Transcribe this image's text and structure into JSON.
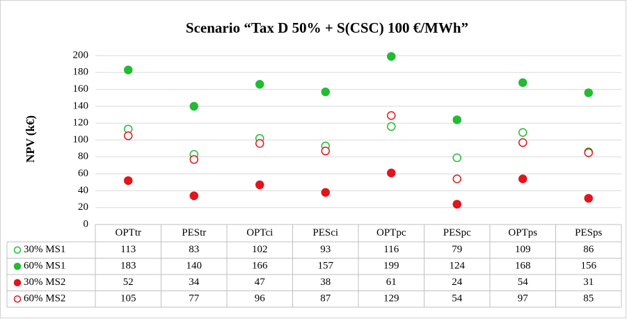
{
  "chart_data": {
    "type": "scatter",
    "title": "Scenario “Tax D 50% + S(CSC) 100 €/MWh”",
    "y_label": "NPV (k€)",
    "categories": [
      "OPTtr",
      "PEStr",
      "OPTci",
      "PESci",
      "OPTpc",
      "PESpc",
      "OPTps",
      "PESps"
    ],
    "series": [
      {
        "name": "30% MS1",
        "color": "#22bb33",
        "marker": "open",
        "values": [
          113,
          83,
          102,
          93,
          116,
          79,
          109,
          86
        ]
      },
      {
        "name": "60% MS1",
        "color": "#22bb33",
        "marker": "filled",
        "values": [
          183,
          140,
          166,
          157,
          199,
          124,
          168,
          156
        ]
      },
      {
        "name": "30% MS2",
        "color": "#e2141c",
        "marker": "filled",
        "values": [
          52,
          34,
          47,
          38,
          61,
          24,
          54,
          31
        ]
      },
      {
        "name": "60% MS2",
        "color": "#e2141c",
        "marker": "open",
        "values": [
          105,
          77,
          96,
          87,
          129,
          54,
          97,
          85
        ]
      }
    ],
    "ylim": [
      0,
      200
    ],
    "yticks": [
      0,
      20,
      40,
      60,
      80,
      100,
      120,
      140,
      160,
      180,
      200
    ],
    "grid": true
  }
}
